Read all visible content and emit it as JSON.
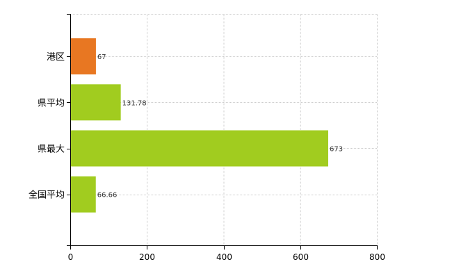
{
  "chart_data": {
    "type": "bar",
    "orientation": "horizontal",
    "categories": [
      "港区",
      "県平均",
      "県最大",
      "全国平均"
    ],
    "values": [
      67,
      131.78,
      673,
      66.66
    ],
    "data_labels": [
      "67",
      "131.78",
      "673",
      "66.66"
    ],
    "bar_colors": [
      "#e87722",
      "#a1cc1f",
      "#a1cc1f",
      "#a1cc1f"
    ],
    "xlim": [
      0,
      800
    ],
    "x_ticks": [
      0,
      200,
      400,
      600,
      800
    ],
    "grid": true,
    "legend": "none"
  }
}
